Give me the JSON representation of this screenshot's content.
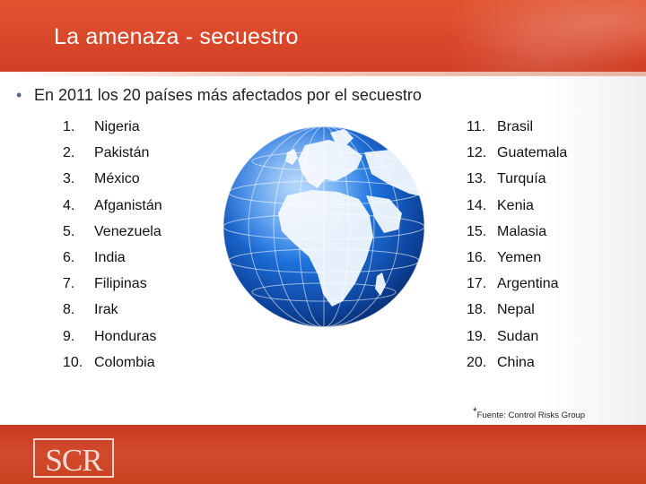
{
  "slide": {
    "title": "La amenaza - secuestro",
    "bullet": "En 2011 los 20 países más afectados por el secuestro",
    "bullet_symbol": "•",
    "source_mark": "*",
    "source": "Fuente: Control Risks Group",
    "logo": "SCR"
  },
  "countries_left": [
    {
      "num": "1.",
      "name": "Nigeria"
    },
    {
      "num": "2.",
      "name": "Pakistán"
    },
    {
      "num": "3.",
      "name": "México"
    },
    {
      "num": "4.",
      "name": "Afganistán"
    },
    {
      "num": "5.",
      "name": "Venezuela"
    },
    {
      "num": "6.",
      "name": "India"
    },
    {
      "num": "7.",
      "name": "Filipinas"
    },
    {
      "num": "8.",
      "name": "Irak"
    },
    {
      "num": "9.",
      "name": "Honduras"
    },
    {
      "num": "10.",
      "name": "Colombia"
    }
  ],
  "countries_right": [
    {
      "num": "11.",
      "name": "Brasil"
    },
    {
      "num": "12.",
      "name": "Guatemala"
    },
    {
      "num": "13.",
      "name": "Turquía"
    },
    {
      "num": "14.",
      "name": "Kenia"
    },
    {
      "num": "15.",
      "name": "Malasia"
    },
    {
      "num": "16.",
      "name": "Yemen"
    },
    {
      "num": "17.",
      "name": "Argentina"
    },
    {
      "num": "18.",
      "name": "Nepal"
    },
    {
      "num": "19.",
      "name": "Sudan"
    },
    {
      "num": "20.",
      "name": "China"
    }
  ],
  "colors": {
    "header": "#d9462a",
    "footer": "#c8401f",
    "globe_ocean": "#1a6fd8",
    "globe_land": "#e9f2fb"
  },
  "icons": {
    "globe": "globe-icon"
  }
}
